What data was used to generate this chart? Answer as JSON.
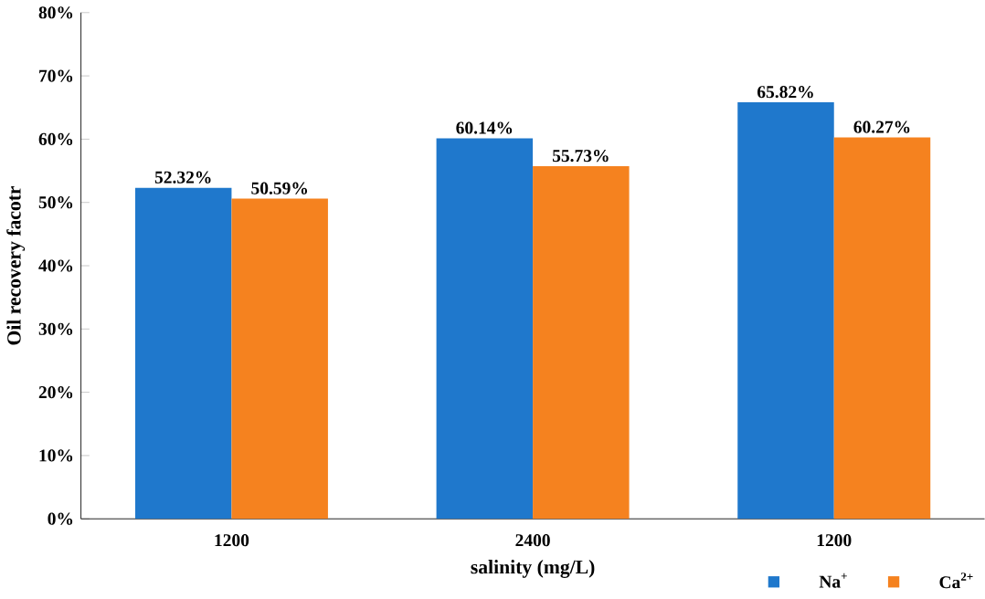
{
  "chart_data": {
    "type": "bar",
    "xlabel": "salinity (mg/L)",
    "ylabel": "Oil recovery facotr",
    "categories": [
      "1200",
      "2400",
      "1200"
    ],
    "series": [
      {
        "name": "Na$^{+}$",
        "color": "#1f78cc",
        "values": [
          52.32,
          60.14,
          65.82
        ],
        "value_labels": [
          "52.32%",
          "60.14%",
          "65.82%"
        ]
      },
      {
        "name": "Ca$^{2+}$",
        "color": "#f5821f",
        "values": [
          50.59,
          55.73,
          60.27
        ],
        "value_labels": [
          "50.59%",
          "55.73%",
          "60.27%"
        ]
      }
    ],
    "ylim": [
      0,
      80
    ],
    "yticks": [
      {
        "value": 0,
        "label": "0%"
      },
      {
        "value": 10,
        "label": "10%"
      },
      {
        "value": 20,
        "label": "20%"
      },
      {
        "value": 30,
        "label": "30%"
      },
      {
        "value": 40,
        "label": "40%"
      },
      {
        "value": 50,
        "label": "50%"
      },
      {
        "value": 60,
        "label": "60%"
      },
      {
        "value": 70,
        "label": "70%"
      },
      {
        "value": 80,
        "label": "80%"
      }
    ],
    "grid": false,
    "legend": "bottom right"
  }
}
